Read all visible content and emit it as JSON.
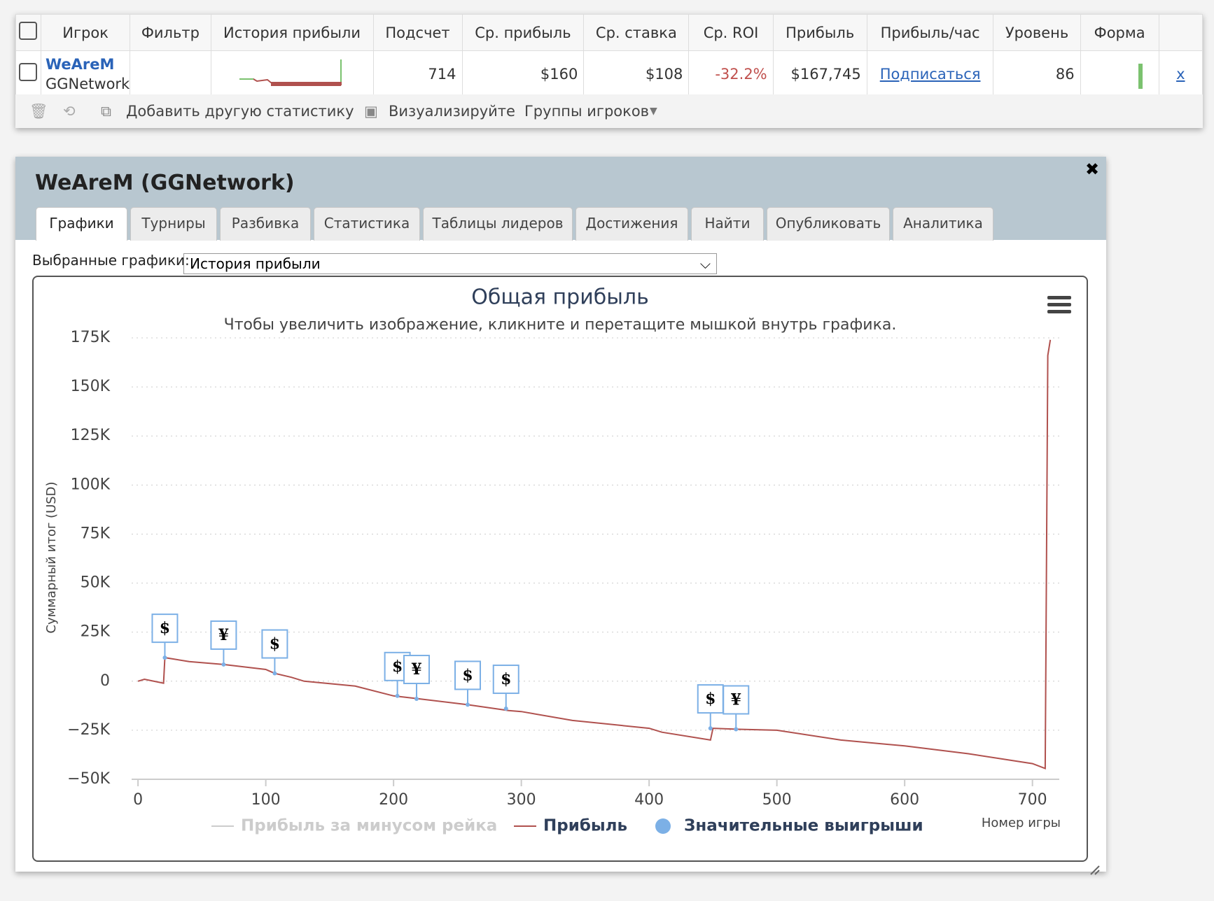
{
  "table": {
    "headers": [
      "Игрок",
      "Фильтр",
      "История прибыли",
      "Подсчет",
      "Ср. прибыль",
      "Ср. ставка",
      "Ср. ROI",
      "Прибыль",
      "Прибыль/час",
      "Уровень",
      "Форма"
    ],
    "row": {
      "player": "WeAreM",
      "network": "GGNetwork",
      "cells": [
        "714",
        "$160",
        "$108",
        "-32.2%",
        "$167,745",
        "Подписаться",
        "86"
      ],
      "remove": "x"
    }
  },
  "toolbar": [
    "Добавить другую статистику",
    "Визуализируйте",
    "Группы игроков"
  ],
  "panel": {
    "title": "WeAreM (GGNetwork)",
    "tabs": [
      "Графики",
      "Турниры",
      "Разбивка",
      "Статистика",
      "Таблицы лидеров",
      "Достижения",
      "Найти",
      "Опубликовать",
      "Аналитика"
    ],
    "selected_label": "Выбранные графики:",
    "selected_value": "История прибыли"
  },
  "chart_data": {
    "type": "line",
    "title": "Общая прибыль",
    "subtitle": "Чтобы увеличить изображение, кликните и перетащите мышкой внутрь графика.",
    "y_label": "Суммарный итог (USD)",
    "x_label": "Номер игры",
    "xlim": [
      -5,
      721
    ],
    "xticks": [
      0,
      100,
      200,
      300,
      400,
      500,
      600,
      700
    ],
    "ylim": [
      -50000,
      175000
    ],
    "yticks": [
      {
        "value": -50000,
        "label": "−50K"
      },
      {
        "value": -25000,
        "label": "−25K"
      },
      0,
      {
        "value": 25000,
        "label": "25K"
      },
      {
        "value": 50000,
        "label": "50K"
      },
      {
        "value": 75000,
        "label": "75K"
      },
      {
        "value": 100000,
        "label": "100K"
      },
      {
        "value": 125000,
        "label": "125K"
      },
      {
        "value": 150000,
        "label": "150K"
      },
      {
        "value": 175000,
        "label": "175K"
      }
    ],
    "grid": true,
    "series": [
      {
        "name": "Прибыль за минусом рейка",
        "color": "#cccccc",
        "visible": false
      },
      {
        "name": "Прибыль",
        "color": "#b0514e",
        "x": [
          0,
          5,
          20,
          21,
          40,
          67,
          100,
          107,
          120,
          130,
          170,
          200,
          220,
          258,
          290,
          300,
          340,
          400,
          410,
          448,
          450,
          470,
          500,
          550,
          600,
          650,
          700,
          710,
          712,
          714
        ],
        "values": [
          0,
          1000,
          -1000,
          12000,
          10000,
          8500,
          6000,
          4000,
          2000,
          0,
          -2500,
          -7500,
          -9000,
          -12000,
          -15000,
          -15500,
          -20000,
          -24000,
          -26000,
          -30000,
          -24000,
          -24500,
          -25000,
          -30000,
          -33000,
          -37000,
          -42000,
          -44500,
          166000,
          174000
        ]
      },
      {
        "name": "Значительные выигрыши",
        "color": "#7cb0e6",
        "x": [
          21,
          67,
          107,
          203,
          218,
          258,
          288,
          448,
          468
        ],
        "values": [
          12000,
          8500,
          4000,
          -7500,
          -9000,
          -12000,
          -14000,
          -24000,
          -24500
        ],
        "labels": [
          "$",
          "¥",
          "$",
          "$",
          "¥",
          "$",
          "$",
          "$",
          "¥"
        ]
      }
    ]
  }
}
